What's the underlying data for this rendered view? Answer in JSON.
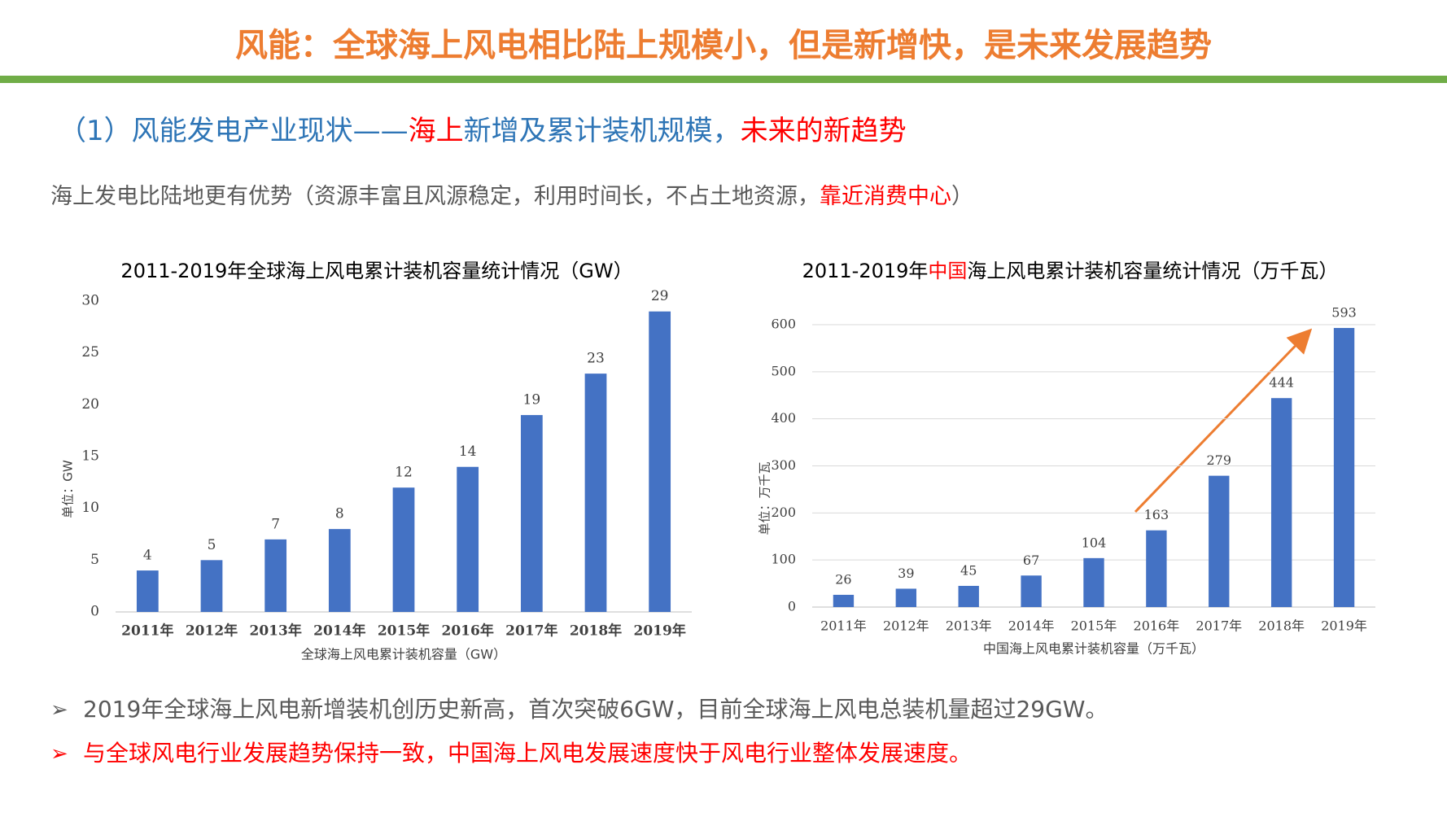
{
  "header": {
    "title": "风能：全球海上风电相比陆上规模小，但是新增快，是未来发展趋势"
  },
  "subtitle": [
    "（1）风能发电产业现状——",
    "海上",
    "新增及累计装机规模，",
    "未来的新趋势"
  ],
  "intro": [
    "海上发电比陆地更有优势（资源丰富且风源稳定，利用时间长，不占土地资源，",
    "靠近消费中心",
    "）"
  ],
  "chart_data": [
    {
      "type": "bar",
      "title": [
        "2011-2019年全球海上风电累计装机容量统计情况（GW）"
      ],
      "title_colors": [
        "#000000"
      ],
      "categories": [
        "2011年",
        "2012年",
        "2013年",
        "2014年",
        "2015年",
        "2016年",
        "2017年",
        "2018年",
        "2019年"
      ],
      "values": [
        4,
        5,
        7,
        8,
        12,
        14,
        19,
        23,
        29
      ],
      "color": "#4472c4",
      "ylim": [
        0,
        30
      ],
      "yticks": [
        0,
        5,
        10,
        15,
        20,
        25,
        30
      ],
      "grid": false,
      "y_label": "单位：GW",
      "x_label": "全球海上风电累计装机容量（GW）"
    },
    {
      "type": "bar",
      "title": [
        "2011-2019年",
        "中国",
        "海上风电累计装机容量统计情况（万千瓦）"
      ],
      "title_colors": [
        "#000000",
        "#ff0000",
        "#000000"
      ],
      "categories": [
        "2011年",
        "2012年",
        "2013年",
        "2014年",
        "2015年",
        "2016年",
        "2017年",
        "2018年",
        "2019年"
      ],
      "values": [
        26,
        39,
        45,
        67,
        104,
        163,
        279,
        444,
        593
      ],
      "color": "#4472c4",
      "ylim": [
        0,
        600
      ],
      "yticks": [
        0,
        100,
        200,
        300,
        400,
        500,
        600
      ],
      "grid": true,
      "y_label": "单位：万千瓦",
      "x_label": "中国海上风电累计装机容量（万千瓦）"
    }
  ],
  "bullets": [
    "2019年全球海上风电新增装机创历史新高，首次突破6GW，目前全球海上风电总装机量超过29GW。",
    "与全球风电行业发展趋势保持一致，中国海上风电发展速度快于风电行业整体发展速度。"
  ]
}
